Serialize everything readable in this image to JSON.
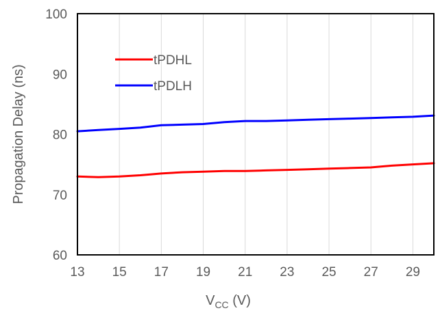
{
  "chart_data": {
    "type": "line",
    "xlabel": "V",
    "xlabel_sub": "CC",
    "xlabel_unit": " (V)",
    "ylabel": "Propagation Delay (ns)",
    "xlim": [
      13,
      30
    ],
    "ylim": [
      60,
      100
    ],
    "xticks": [
      13,
      15,
      17,
      19,
      21,
      23,
      25,
      27,
      29
    ],
    "yticks": [
      60,
      70,
      80,
      90,
      100
    ],
    "grid": "vertical",
    "legend_position": "top-left",
    "series": [
      {
        "name": "tPDHL",
        "color": "#ff0000",
        "x": [
          13,
          14,
          15,
          16,
          17,
          18,
          19,
          20,
          21,
          22,
          23,
          24,
          25,
          26,
          27,
          28,
          29,
          30
        ],
        "y": [
          73.0,
          72.9,
          73.0,
          73.2,
          73.5,
          73.7,
          73.8,
          73.9,
          73.9,
          74.0,
          74.1,
          74.2,
          74.3,
          74.4,
          74.5,
          74.8,
          75.0,
          75.2
        ]
      },
      {
        "name": "tPDLH",
        "color": "#0000ff",
        "x": [
          13,
          14,
          15,
          16,
          17,
          18,
          19,
          20,
          21,
          22,
          23,
          24,
          25,
          26,
          27,
          28,
          29,
          30
        ],
        "y": [
          80.5,
          80.7,
          80.9,
          81.1,
          81.5,
          81.6,
          81.7,
          82.0,
          82.2,
          82.2,
          82.3,
          82.4,
          82.5,
          82.6,
          82.7,
          82.8,
          82.9,
          83.1
        ]
      }
    ]
  }
}
